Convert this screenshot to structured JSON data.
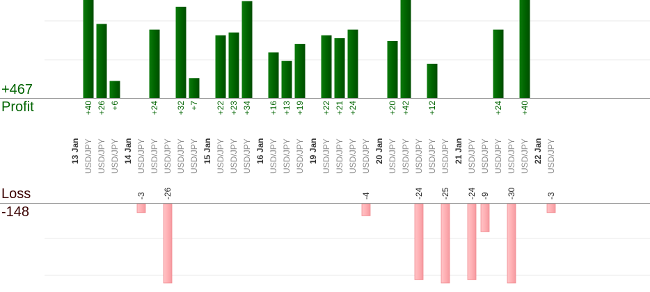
{
  "chart_data": {
    "type": "bar",
    "symbol": "USD/JPY",
    "profit": {
      "label": "Profit",
      "total": "+467",
      "color": "#006400"
    },
    "loss": {
      "label": "Loss",
      "total": "-148",
      "color": "#ffb0b4"
    },
    "columns": [
      {
        "kind": "date",
        "label": "13 Jan"
      },
      {
        "kind": "trade",
        "label": "USD/JPY",
        "value": 40
      },
      {
        "kind": "trade",
        "label": "USD/JPY",
        "value": 26
      },
      {
        "kind": "trade",
        "label": "USD/JPY",
        "value": 6
      },
      {
        "kind": "date",
        "label": "14 Jan"
      },
      {
        "kind": "trade",
        "label": "USD/JPY",
        "value": -3
      },
      {
        "kind": "trade",
        "label": "USD/JPY",
        "value": 24
      },
      {
        "kind": "trade",
        "label": "USD/JPY",
        "value": -26
      },
      {
        "kind": "trade",
        "label": "USD/JPY",
        "value": 32
      },
      {
        "kind": "trade",
        "label": "USD/JPY",
        "value": 7
      },
      {
        "kind": "date",
        "label": "15 Jan"
      },
      {
        "kind": "trade",
        "label": "USD/JPY",
        "value": 22
      },
      {
        "kind": "trade",
        "label": "USD/JPY",
        "value": 23
      },
      {
        "kind": "trade",
        "label": "USD/JPY",
        "value": 34
      },
      {
        "kind": "date",
        "label": "16 Jan"
      },
      {
        "kind": "trade",
        "label": "USD/JPY",
        "value": 16
      },
      {
        "kind": "trade",
        "label": "USD/JPY",
        "value": 13
      },
      {
        "kind": "trade",
        "label": "USD/JPY",
        "value": 19
      },
      {
        "kind": "date",
        "label": "19 Jan"
      },
      {
        "kind": "trade",
        "label": "USD/JPY",
        "value": 22
      },
      {
        "kind": "trade",
        "label": "USD/JPY",
        "value": 21
      },
      {
        "kind": "trade",
        "label": "USD/JPY",
        "value": 24
      },
      {
        "kind": "trade",
        "label": "USD/JPY",
        "value": -4
      },
      {
        "kind": "date",
        "label": "20 Jan"
      },
      {
        "kind": "trade",
        "label": "USD/JPY",
        "value": 20
      },
      {
        "kind": "trade",
        "label": "USD/JPY",
        "value": 42
      },
      {
        "kind": "trade",
        "label": "USD/JPY",
        "value": -24
      },
      {
        "kind": "trade",
        "label": "USD/JPY",
        "value": 12
      },
      {
        "kind": "trade",
        "label": "USD/JPY",
        "value": -25
      },
      {
        "kind": "date",
        "label": "21 Jan"
      },
      {
        "kind": "trade",
        "label": "USD/JPY",
        "value": -24
      },
      {
        "kind": "trade",
        "label": "USD/JPY",
        "value": -9
      },
      {
        "kind": "trade",
        "label": "USD/JPY",
        "value": 24
      },
      {
        "kind": "trade",
        "label": "USD/JPY",
        "value": -30
      },
      {
        "kind": "trade",
        "label": "USD/JPY",
        "value": 40
      },
      {
        "kind": "date",
        "label": "22 Jan"
      },
      {
        "kind": "trade",
        "label": "USD/JPY",
        "value": -3
      }
    ],
    "grid": true
  }
}
